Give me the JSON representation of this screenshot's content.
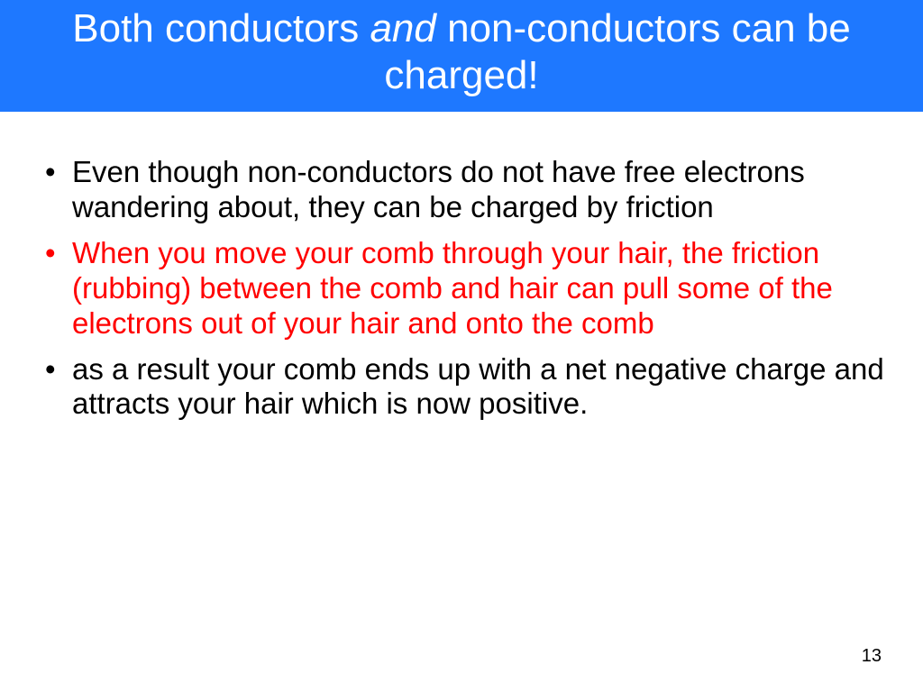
{
  "title": {
    "part1": "Both conductors ",
    "italic": "and",
    "part2": " non-conductors can be charged!",
    "bg_color": "#1e78ff",
    "text_color": "#ffffff",
    "fontsize": 44
  },
  "bullets": [
    {
      "text": "Even though non-conductors do not have free electrons wandering about, they can be charged by friction",
      "color": "#000000"
    },
    {
      "text": "When you move your comb through your hair, the friction (rubbing) between the comb and hair can pull some of the electrons out of your hair and onto the comb",
      "color": "#ff0000"
    },
    {
      "text": "as a result your comb ends up with a net negative charge and attracts your hair which is now positive.",
      "color": "#000000"
    }
  ],
  "body_fontsize": 33,
  "page_number": "13",
  "background_color": "#ffffff"
}
